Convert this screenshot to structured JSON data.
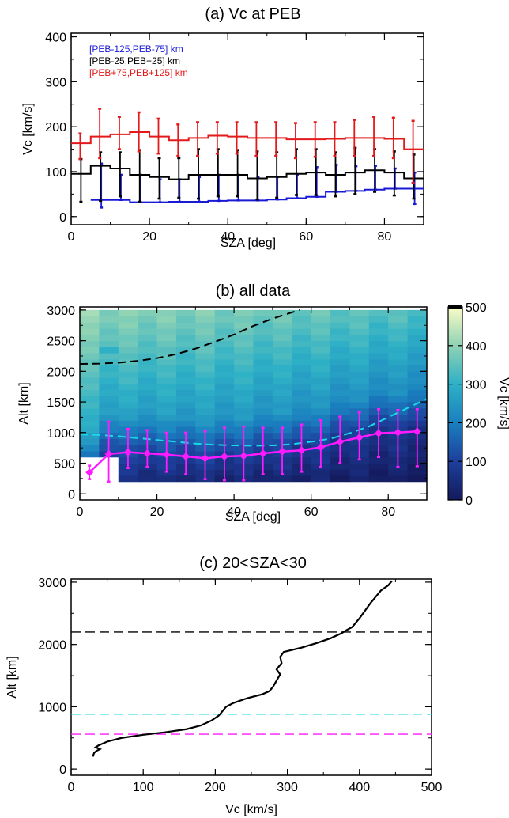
{
  "chart_data": [
    {
      "type": "line",
      "title": "(a) Vc at PEB",
      "xlabel": "SZA [deg]",
      "ylabel": "Vc [km/s]",
      "xlim": [
        0,
        90
      ],
      "ylim": [
        0,
        400
      ],
      "xticks": [
        "0",
        "20",
        "40",
        "60",
        "80"
      ],
      "yticks": [
        "0",
        "100",
        "200",
        "300",
        "400"
      ],
      "legend_placement": "top-left",
      "x": [
        2.5,
        7.5,
        12.5,
        17.5,
        22.5,
        27.5,
        32.5,
        37.5,
        42.5,
        47.5,
        52.5,
        57.5,
        62.5,
        67.5,
        72.5,
        77.5,
        82.5,
        87.5
      ],
      "series": [
        {
          "name": "[PEB-125,PEB-75] km",
          "color": "#1a1ad6",
          "values": [
            null,
            37,
            37,
            32,
            32,
            33,
            33,
            35,
            36,
            36,
            38,
            41,
            44,
            55,
            57,
            60,
            62,
            62
          ],
          "err_low": [
            null,
            20,
            37,
            32,
            32,
            33,
            33,
            35,
            36,
            36,
            38,
            41,
            44,
            55,
            57,
            60,
            62,
            28
          ],
          "err_high": [
            null,
            118,
            93,
            93,
            83,
            83,
            88,
            93,
            93,
            88,
            88,
            93,
            110,
            115,
            112,
            113,
            107,
            98
          ]
        },
        {
          "name": "[PEB-25,PEB+25] km",
          "color": "#000000",
          "values": [
            95,
            113,
            107,
            93,
            88,
            83,
            93,
            93,
            93,
            85,
            88,
            95,
            98,
            93,
            98,
            103,
            98,
            85
          ],
          "err_low": [
            33,
            35,
            45,
            33,
            40,
            42,
            40,
            45,
            45,
            38,
            42,
            48,
            48,
            45,
            50,
            55,
            47,
            40
          ],
          "err_high": [
            128,
            143,
            143,
            148,
            130,
            130,
            150,
            150,
            148,
            145,
            143,
            150,
            150,
            143,
            153,
            150,
            145,
            138
          ]
        },
        {
          "name": "[PEB+75,PEB+125] km",
          "color": "#e41a1a",
          "values": [
            163,
            178,
            183,
            188,
            178,
            170,
            175,
            180,
            178,
            175,
            175,
            172,
            172,
            173,
            175,
            175,
            173,
            150
          ],
          "err_low": [
            128,
            130,
            150,
            145,
            140,
            135,
            135,
            140,
            140,
            135,
            135,
            130,
            133,
            135,
            135,
            135,
            130,
            75
          ],
          "err_high": [
            185,
            240,
            222,
            232,
            218,
            205,
            210,
            210,
            210,
            210,
            210,
            208,
            210,
            210,
            215,
            222,
            220,
            213
          ]
        }
      ]
    },
    {
      "type": "heatmap",
      "title": "(b) all data",
      "xlabel": "SZA [deg]",
      "ylabel": "Alt [km]",
      "colorbar_label": "Vc [km/s]",
      "colorbar_ticks": [
        "0",
        "100",
        "200",
        "300",
        "400",
        "500"
      ],
      "colorbar_range": [
        0,
        500
      ],
      "xlim": [
        0,
        90
      ],
      "ylim": [
        0,
        3000
      ],
      "xticks": [
        "0",
        "20",
        "40",
        "60",
        "80"
      ],
      "yticks": [
        "0",
        "500",
        "1000",
        "1500",
        "2000",
        "2500",
        "3000"
      ],
      "x": [
        2.5,
        7.5,
        12.5,
        17.5,
        22.5,
        27.5,
        32.5,
        37.5,
        42.5,
        47.5,
        52.5,
        57.5,
        62.5,
        67.5,
        72.5,
        77.5,
        82.5,
        87.5
      ],
      "peb_series": {
        "color": "#ff1aff",
        "values": [
          350,
          650,
          680,
          660,
          640,
          610,
          580,
          610,
          620,
          660,
          690,
          710,
          760,
          850,
          920,
          990,
          1000,
          1020
        ],
        "err_low": [
          240,
          200,
          420,
          440,
          360,
          320,
          240,
          220,
          220,
          320,
          320,
          360,
          440,
          500,
          560,
          600,
          440,
          450
        ],
        "err_high": [
          460,
          1180,
          1060,
          1040,
          1000,
          1000,
          1020,
          1080,
          1100,
          1080,
          1080,
          1130,
          1200,
          1260,
          1330,
          1380,
          1370,
          1380
        ]
      },
      "dashed_curves": [
        {
          "color": "#000000",
          "x": [
            0,
            5,
            10,
            15,
            20,
            25,
            30,
            35,
            40,
            45,
            50,
            55,
            57
          ],
          "y": [
            2120,
            2125,
            2140,
            2170,
            2215,
            2280,
            2370,
            2480,
            2600,
            2740,
            2860,
            2960,
            3000
          ]
        },
        {
          "color": "#1ad9e6",
          "x": [
            0,
            5,
            10,
            15,
            20,
            25,
            30,
            35,
            40,
            45,
            50,
            55,
            60,
            65,
            70,
            75,
            80,
            85,
            90
          ],
          "y": [
            970,
            960,
            940,
            910,
            880,
            850,
            820,
            800,
            790,
            785,
            790,
            810,
            850,
            900,
            990,
            1100,
            1250,
            1400,
            1550
          ]
        }
      ]
    },
    {
      "type": "line",
      "title": "(c) 20<SZA<30",
      "xlabel": "Vc [km/s]",
      "ylabel": "Alt [km]",
      "xlim": [
        0,
        500
      ],
      "ylim": [
        -100,
        3050
      ],
      "xticks": [
        "0",
        "100",
        "200",
        "300",
        "400",
        "500"
      ],
      "yticks": [
        "0",
        "1000",
        "2000",
        "3000"
      ],
      "profile": {
        "x": [
          30,
          32,
          35,
          40,
          34,
          38,
          50,
          70,
          100,
          130,
          160,
          180,
          195,
          205,
          210,
          215,
          225,
          245,
          265,
          275,
          280,
          285,
          290,
          285,
          292,
          290,
          295,
          320,
          340,
          360,
          375,
          382,
          390,
          395,
          400,
          405,
          410,
          415,
          420,
          425,
          430,
          440,
          445
        ],
        "y": [
          200,
          260,
          290,
          320,
          350,
          380,
          440,
          500,
          550,
          590,
          640,
          700,
          780,
          860,
          930,
          1000,
          1060,
          1140,
          1200,
          1250,
          1320,
          1420,
          1520,
          1600,
          1700,
          1800,
          1880,
          1950,
          2020,
          2100,
          2180,
          2230,
          2280,
          2350,
          2420,
          2500,
          2580,
          2660,
          2730,
          2800,
          2870,
          2950,
          3020
        ]
      },
      "hlines": [
        {
          "y": 2200,
          "color": "#000000"
        },
        {
          "y": 880,
          "color": "#1ad9e6"
        },
        {
          "y": 560,
          "color": "#ff1aff"
        }
      ]
    }
  ]
}
